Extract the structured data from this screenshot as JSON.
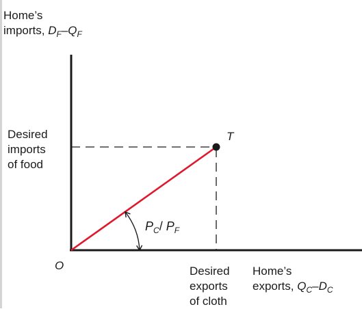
{
  "y_axis": {
    "label_line1": "Home’s",
    "label_line2": "imports,",
    "formula": {
      "a": "D",
      "a_sub": "F",
      "minus": "–",
      "b": "Q",
      "b_sub": "F"
    }
  },
  "x_axis": {
    "label_line1": "Home’s",
    "label_line2": "exports,",
    "formula": {
      "a": "Q",
      "a_sub": "C",
      "minus": "–",
      "b": "D",
      "b_sub": "C"
    }
  },
  "origin_label": "O",
  "point_label": "T",
  "desired_imports": [
    "Desired",
    "imports",
    "of food"
  ],
  "desired_exports": [
    "Desired",
    "exports",
    "of cloth"
  ],
  "slope_label": {
    "num": "P",
    "num_sub": "C",
    "slash": "/",
    "den": "P",
    "den_sub": "F"
  },
  "colors": {
    "offer_line": "#e0182d",
    "axes": "#1a1a1a",
    "guides": "#1a1a1a",
    "frame": "#d4d4d4"
  }
}
